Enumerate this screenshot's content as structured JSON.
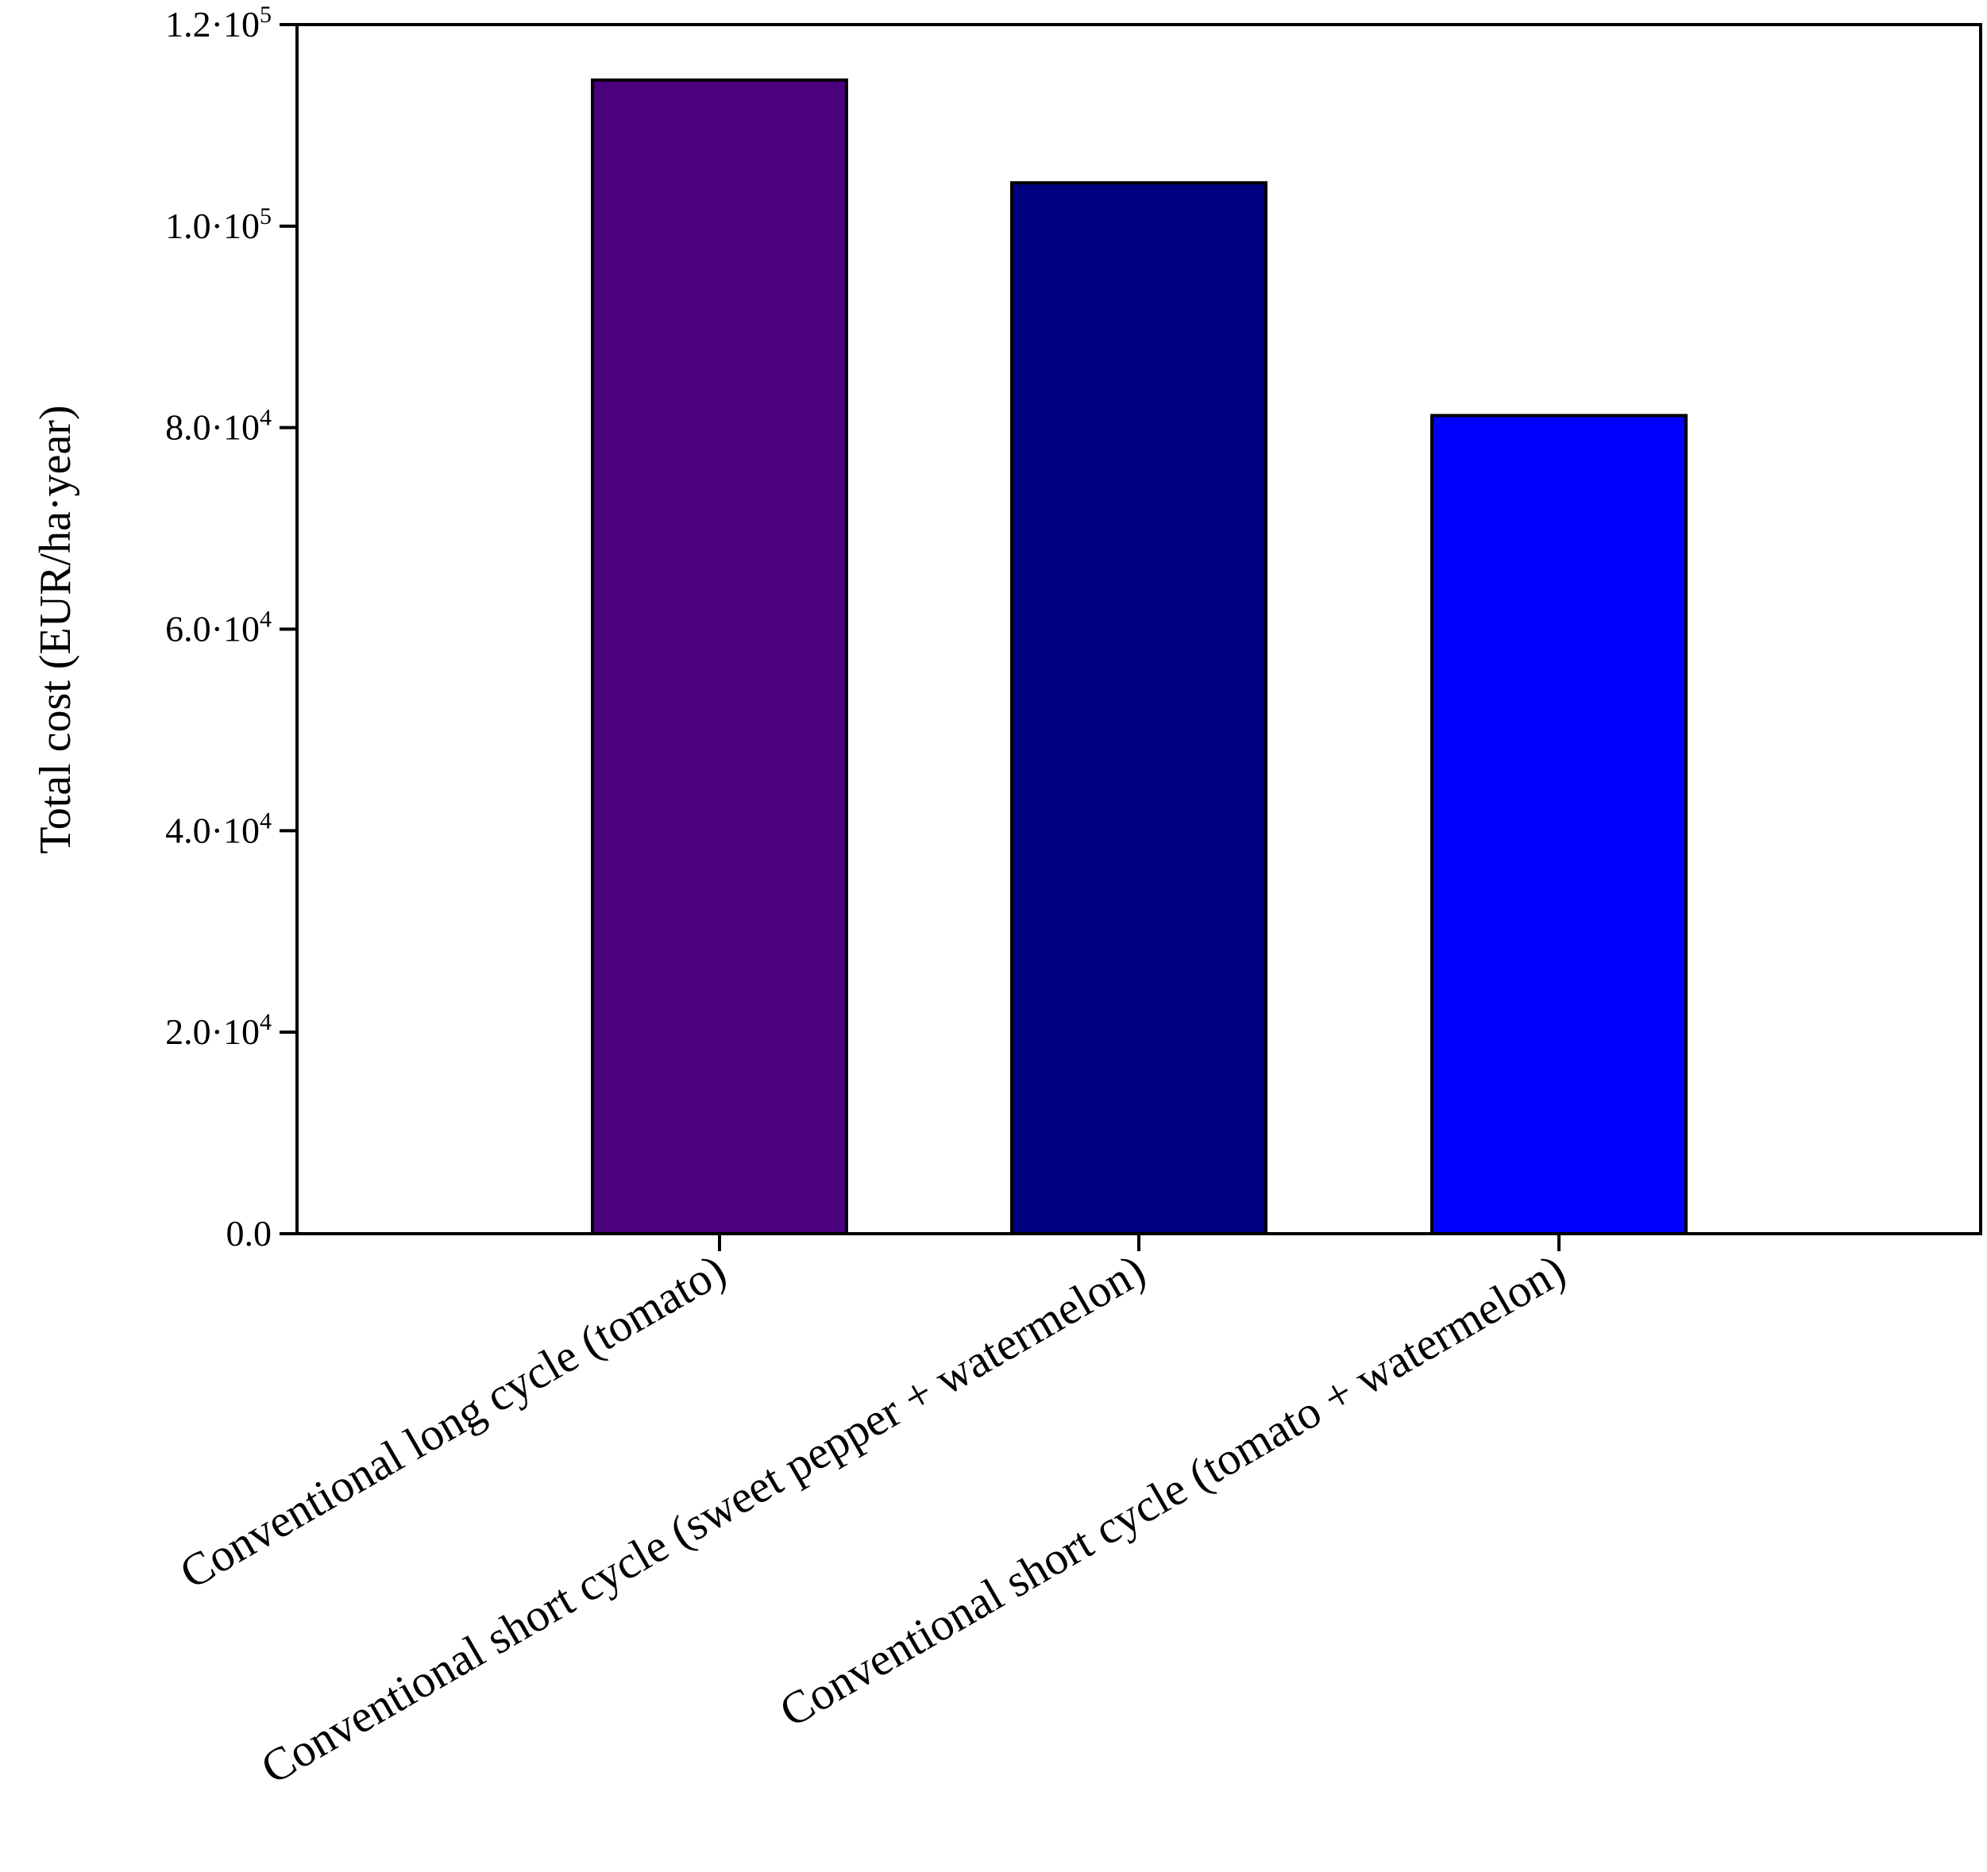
{
  "chart_data": {
    "type": "bar",
    "title": "",
    "xlabel": "",
    "ylabel": "Total cost (EUR/ha·year)",
    "ylim": [
      0,
      120000
    ],
    "grid": false,
    "categories": [
      "Conventional long cycle (tomato)",
      "Conventional short cycle (sweet pepper + watermelon)",
      "Conventional short cycle (tomato + watermelon)"
    ],
    "values": [
      114500,
      104300,
      81200
    ],
    "colors": [
      "#4b007e",
      "#000080",
      "#0000ff"
    ],
    "y_ticks": [
      {
        "value": 0,
        "mantissa": "0.0",
        "exponent": ""
      },
      {
        "value": 20000,
        "mantissa": "2.0·10",
        "exponent": "4"
      },
      {
        "value": 40000,
        "mantissa": "4.0·10",
        "exponent": "4"
      },
      {
        "value": 60000,
        "mantissa": "6.0·10",
        "exponent": "4"
      },
      {
        "value": 80000,
        "mantissa": "8.0·10",
        "exponent": "4"
      },
      {
        "value": 100000,
        "mantissa": "1.0·10",
        "exponent": "5"
      },
      {
        "value": 120000,
        "mantissa": "1.2·10",
        "exponent": "5"
      }
    ]
  }
}
